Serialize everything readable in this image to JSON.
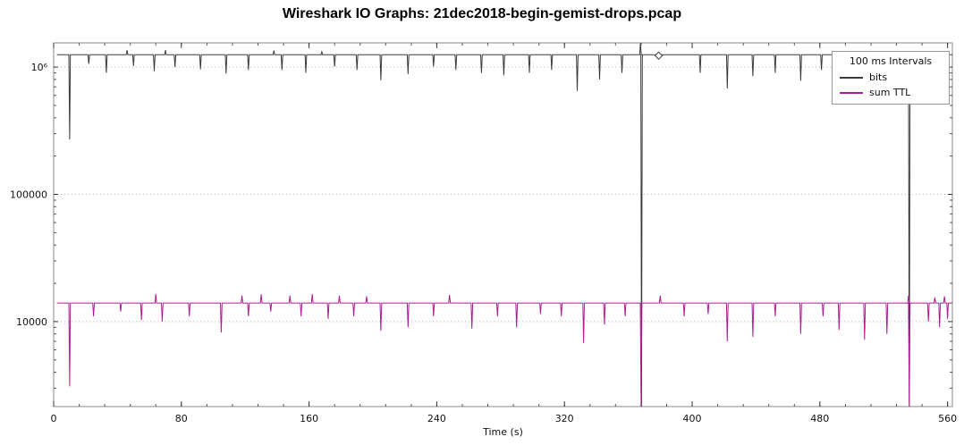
{
  "window": {
    "title": "Wireshark IO Graphs: 21dec2018-begin-gemist-drops.pcap"
  },
  "chart_data": {
    "type": "line",
    "title": "Wireshark IO Graphs: 21dec2018-begin-gemist-drops.pcap",
    "xlabel": "Time (s)",
    "ylabel": "",
    "yscale": "log",
    "grid": true,
    "xlim": [
      0,
      563
    ],
    "ylim": [
      2150,
      1550000
    ],
    "x_ticks": [
      0,
      80,
      160,
      240,
      320,
      400,
      480,
      560
    ],
    "x_minor_step": 16,
    "y_ticks": [
      {
        "value": 1000000,
        "label": "10⁶"
      },
      {
        "value": 100000,
        "label": "100000"
      },
      {
        "value": 10000,
        "label": "10000"
      }
    ],
    "legend": {
      "position": "top-right",
      "title": "100 ms Intervals",
      "entries": [
        {
          "label": "bits",
          "color": "#3a3a3a"
        },
        {
          "label": "sum TTL",
          "color": "#b01b94"
        }
      ]
    },
    "series": [
      {
        "name": "bits",
        "color": "#3a3a3a",
        "baseline": 1250000,
        "range": [
          2,
          563
        ],
        "spikes": [
          [
            10,
            270000
          ],
          [
            22,
            1060000
          ],
          [
            33,
            900000
          ],
          [
            46,
            1360000
          ],
          [
            50,
            1020000
          ],
          [
            63,
            930000
          ],
          [
            70,
            1360000
          ],
          [
            76,
            1000000
          ],
          [
            92,
            960000
          ],
          [
            108,
            890000
          ],
          [
            122,
            950000
          ],
          [
            138,
            1350000
          ],
          [
            143,
            950000
          ],
          [
            158,
            900000
          ],
          [
            168,
            1320000
          ],
          [
            176,
            1010000
          ],
          [
            190,
            950000
          ],
          [
            205,
            790000
          ],
          [
            222,
            880000
          ],
          [
            238,
            1010000
          ],
          [
            252,
            950000
          ],
          [
            268,
            900000
          ],
          [
            282,
            860000
          ],
          [
            298,
            900000
          ],
          [
            312,
            950000
          ],
          [
            328,
            650000
          ],
          [
            342,
            800000
          ],
          [
            356,
            900000
          ],
          [
            367.6,
            1550000
          ],
          [
            368.3,
            2150
          ],
          [
            405,
            900000
          ],
          [
            422,
            680000
          ],
          [
            438,
            850000
          ],
          [
            452,
            900000
          ],
          [
            468,
            780000
          ],
          [
            481,
            950000
          ],
          [
            492,
            720000
          ],
          [
            508,
            890000
          ],
          [
            522,
            840000
          ],
          [
            536,
            2150
          ],
          [
            551,
            900000
          ],
          [
            557,
            950000
          ]
        ]
      },
      {
        "name": "sum TTL",
        "color": "#b01b94",
        "baseline": 14000,
        "range": [
          2,
          563
        ],
        "spikes": [
          [
            10,
            3100
          ],
          [
            25,
            11000
          ],
          [
            42,
            12000
          ],
          [
            55,
            10300
          ],
          [
            64,
            16500
          ],
          [
            68,
            10000
          ],
          [
            85,
            11000
          ],
          [
            105,
            8200
          ],
          [
            118,
            16000
          ],
          [
            122,
            11000
          ],
          [
            130,
            16400
          ],
          [
            136,
            12000
          ],
          [
            148,
            16000
          ],
          [
            155,
            11000
          ],
          [
            162,
            16500
          ],
          [
            172,
            10500
          ],
          [
            179,
            16000
          ],
          [
            188,
            11000
          ],
          [
            196,
            15800
          ],
          [
            205,
            8500
          ],
          [
            222,
            9000
          ],
          [
            238,
            11000
          ],
          [
            248,
            16200
          ],
          [
            262,
            8800
          ],
          [
            278,
            11000
          ],
          [
            290,
            9000
          ],
          [
            305,
            11500
          ],
          [
            318,
            11000
          ],
          [
            332,
            6800
          ],
          [
            345,
            9500
          ],
          [
            358,
            11000
          ],
          [
            368,
            2150
          ],
          [
            380,
            16000
          ],
          [
            395,
            11000
          ],
          [
            410,
            11500
          ],
          [
            422,
            7000
          ],
          [
            438,
            7600
          ],
          [
            452,
            11000
          ],
          [
            468,
            8000
          ],
          [
            482,
            11000
          ],
          [
            492,
            8600
          ],
          [
            508,
            7200
          ],
          [
            522,
            8000
          ],
          [
            535.5,
            16000
          ],
          [
            536,
            2150
          ],
          [
            548,
            10000
          ],
          [
            552,
            15500
          ],
          [
            555,
            9000
          ],
          [
            558,
            15800
          ],
          [
            560,
            10500
          ]
        ]
      }
    ],
    "marker": {
      "series": "bits",
      "shape": "diamond",
      "x": 379,
      "y": 1230000
    }
  }
}
